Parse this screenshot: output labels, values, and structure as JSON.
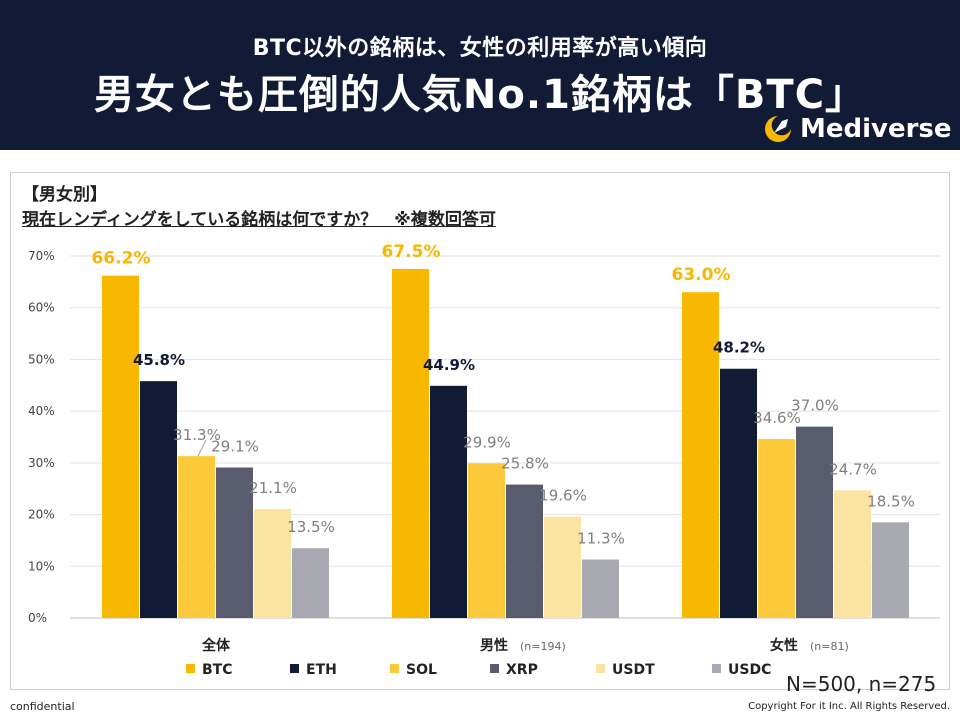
{
  "header": {
    "subtitle": "BTC以外の銘柄は、女性の利用率が高い傾向",
    "title": "男女とも圧倒的人気No.1銘柄は「BTC」",
    "logo_text": "Mediverse"
  },
  "question": {
    "tag": "【男女別】",
    "text": "現在レンディングをしている銘柄は何ですか？　※複数回答可"
  },
  "chart_data": {
    "type": "bar",
    "categories": [
      "全体",
      "男性",
      "女性"
    ],
    "category_notes": [
      "",
      "(n=194)",
      "(n=81)"
    ],
    "series": [
      {
        "name": "BTC",
        "values": [
          66.2,
          67.5,
          63.0
        ],
        "color": "#f9b800",
        "label_color": "#f9b800"
      },
      {
        "name": "ETH",
        "values": [
          45.8,
          44.9,
          48.2
        ],
        "color": "#111b35",
        "label_color": "#111b35"
      },
      {
        "name": "SOL",
        "values": [
          31.3,
          29.9,
          34.6
        ],
        "color": "#fcc93a",
        "label_color": "#7f7f7f"
      },
      {
        "name": "XRP",
        "values": [
          29.1,
          25.8,
          37.0
        ],
        "color": "#585c6e",
        "label_color": "#7f7f7f"
      },
      {
        "name": "USDT",
        "values": [
          21.1,
          19.6,
          24.7
        ],
        "color": "#fbe3a2",
        "label_color": "#7f7f7f"
      },
      {
        "name": "USDC",
        "values": [
          13.5,
          11.3,
          18.5
        ],
        "color": "#a8a9b1",
        "label_color": "#7f7f7f"
      }
    ],
    "value_labels": [
      [
        "66.2%",
        "67.5%",
        "63.0%"
      ],
      [
        "45.8%",
        "44.9%",
        "48.2%"
      ],
      [
        "31.3%",
        "29.9%",
        "34.6%"
      ],
      [
        "29.1%",
        "25.8%",
        "37.0%"
      ],
      [
        "21.1%",
        "19.6%",
        "24.7%"
      ],
      [
        "13.5%",
        "11.3%",
        "18.5%"
      ]
    ],
    "y_ticks": [
      "0%",
      "10%",
      "20%",
      "30%",
      "40%",
      "50%",
      "60%",
      "70%"
    ],
    "ylim": [
      0,
      70
    ],
    "grid": true,
    "legend_position": "bottom"
  },
  "footer": {
    "note": "N=500, n=275",
    "confidential": "confidential",
    "copyright": "Copyright For it Inc. All Rights Reserved."
  }
}
